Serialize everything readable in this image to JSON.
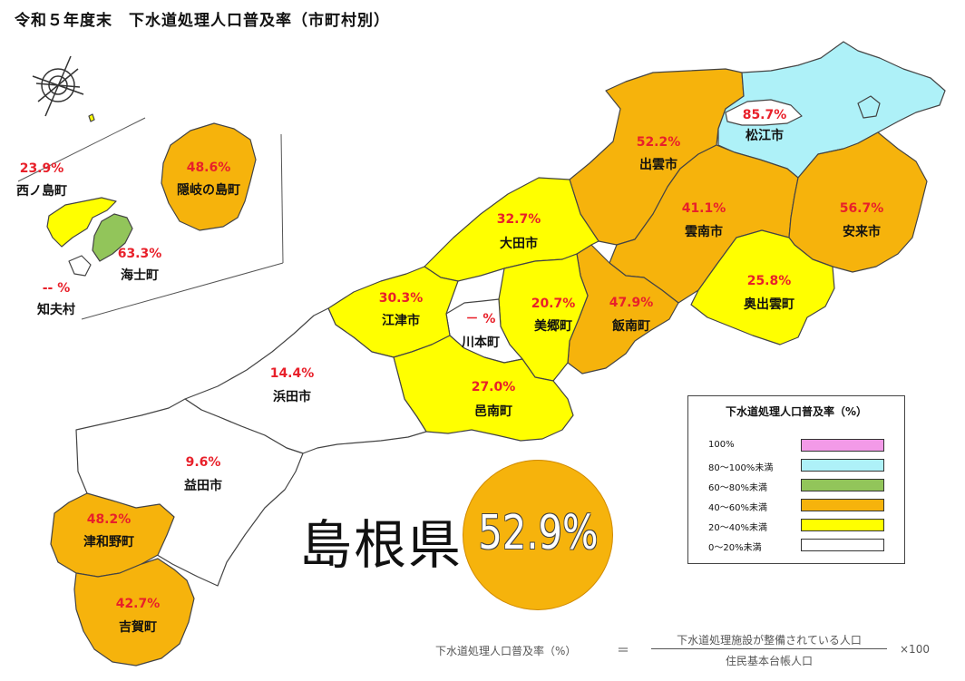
{
  "title": "令和５年度末　下水道処理人口普及率（市町村別）",
  "colors": {
    "c100": "#f39ae8",
    "c80": "#aef1f8",
    "c60": "#92c55a",
    "c40": "#f6b30c",
    "c20": "#ffff00",
    "c0": "#ffffff"
  },
  "municipalities": {
    "matsue": {
      "name": "松江市",
      "rate": "85.7%"
    },
    "izumo": {
      "name": "出雲市",
      "rate": "52.2%"
    },
    "yasugi": {
      "name": "安来市",
      "rate": "56.7%"
    },
    "unnan": {
      "name": "雲南市",
      "rate": "41.1%"
    },
    "okuizumo": {
      "name": "奥出雲町",
      "rate": "25.8%"
    },
    "iinan": {
      "name": "飯南町",
      "rate": "47.9%"
    },
    "oda": {
      "name": "大田市",
      "rate": "32.7%"
    },
    "misato": {
      "name": "美郷町",
      "rate": "20.7%"
    },
    "kawamoto": {
      "name": "川本町",
      "rate": "－ %"
    },
    "gotsu": {
      "name": "江津市",
      "rate": "30.3%"
    },
    "onan": {
      "name": "邑南町",
      "rate": "27.0%"
    },
    "hamada": {
      "name": "浜田市",
      "rate": "14.4%"
    },
    "masuda": {
      "name": "益田市",
      "rate": "9.6%"
    },
    "tsuwano": {
      "name": "津和野町",
      "rate": "48.2%"
    },
    "yoshika": {
      "name": "吉賀町",
      "rate": "42.7%"
    },
    "okinoshima": {
      "name": "隠岐の島町",
      "rate": "48.6%"
    },
    "nishinoshima": {
      "name": "西ノ島町",
      "rate": "23.9%"
    },
    "ama": {
      "name": "海士町",
      "rate": "63.3%"
    },
    "chibu": {
      "name": "知夫村",
      "rate": "-- %"
    }
  },
  "prefecture": {
    "name": "島根県",
    "rate": "52.9%"
  },
  "legend": {
    "title": "下水道処理人口普及率（%）",
    "items": [
      {
        "label": "100%",
        "color": "#f39ae8"
      },
      {
        "label": "80～100%未満",
        "color": "#aef1f8"
      },
      {
        "label": "60～80%未満",
        "color": "#92c55a"
      },
      {
        "label": "40～60%未満",
        "color": "#f6b30c"
      },
      {
        "label": "20～40%未満",
        "color": "#ffff00"
      },
      {
        "label": "0～20%未満",
        "color": "#ffffff"
      }
    ]
  },
  "formula": {
    "lhs": "下水道処理人口普及率（%）",
    "equals": "＝",
    "numerator": "下水道処理施設が整備されている人口",
    "denominator": "住民基本台帳人口",
    "multiplier": "×100"
  }
}
